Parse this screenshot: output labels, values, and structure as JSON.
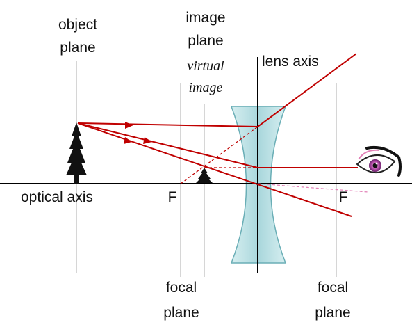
{
  "labels": {
    "object_plane": [
      "object",
      "plane"
    ],
    "image_plane": [
      "image",
      "plane"
    ],
    "virtual_image": [
      "virtual",
      "image"
    ],
    "lens_axis": "lens axis",
    "optical_axis": "optical axis",
    "focal_left_marker": "F",
    "focal_right_marker": "F",
    "focal_plane_left": [
      "focal",
      "plane"
    ],
    "focal_plane_right": [
      "focal",
      "plane"
    ]
  },
  "colors": {
    "ray": "#c00000",
    "virtual_ray": "#c00000",
    "eye_ray": "#e27fb6",
    "lens_fill": "#bfe3e6",
    "lens_stroke": "#6aaeb6",
    "axis": "#000000",
    "guide_line": "#c8c8c8",
    "object": "#111111"
  },
  "icons": {
    "object": "tree-icon",
    "virtual_image": "small-tree-icon",
    "observer": "eye-icon"
  }
}
